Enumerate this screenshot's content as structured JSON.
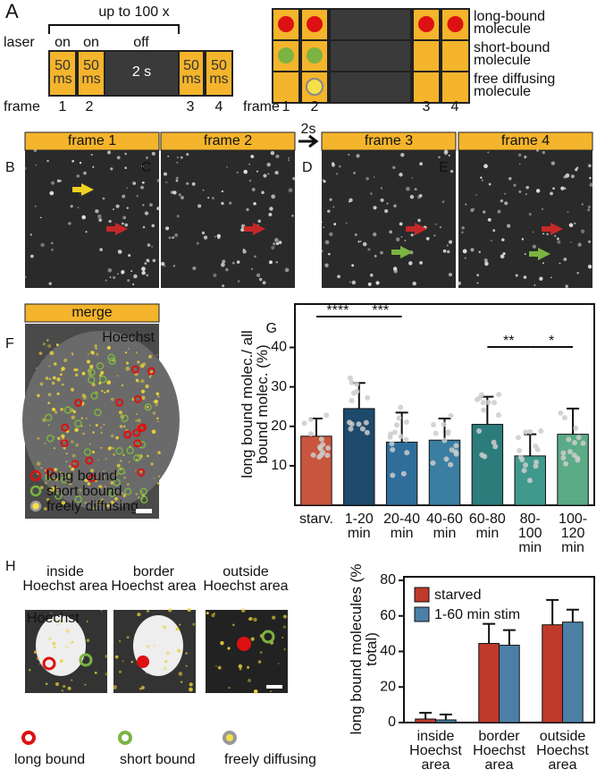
{
  "panel_a": {
    "label": "A",
    "repeat": "up to 100 x",
    "laser": "laser",
    "laser_states": [
      "on",
      "on",
      "off"
    ],
    "boxes": [
      "50 ms",
      "50 ms",
      "2 s",
      "50 ms",
      "50 ms"
    ],
    "frame": "frame",
    "frames": [
      "1",
      "2",
      "3",
      "4"
    ],
    "frame_right": "frame",
    "frames_right": [
      "1",
      "2",
      "3",
      "4"
    ],
    "molecules": [
      "long-bound molecule",
      "short-bound molecule",
      "free diffusing molecule"
    ]
  },
  "panel_frames": {
    "letters": [
      "B",
      "C",
      "D",
      "E"
    ],
    "headers": [
      "frame 1",
      "frame 2",
      "frame 3",
      "frame 4"
    ],
    "interval": "2s"
  },
  "panel_f": {
    "label": "F",
    "header": "merge",
    "stain": "Hoechst",
    "legend": [
      "long bound",
      "short bound",
      "freely diffusing"
    ]
  },
  "panel_h": {
    "label": "H",
    "regions": [
      "inside Hoechst area",
      "border Hoechst area",
      "outside Hoechst area"
    ],
    "stain": "Hoechst",
    "legend": [
      "long bound",
      "short bound",
      "freely diffusing"
    ]
  },
  "chart_data": [
    {
      "type": "bar",
      "panel": "G",
      "y_label": "long bound molec./ all bound molec. (%)",
      "categories": [
        "starv.",
        "1-20 min",
        "20-40 min",
        "40-60 min",
        "60-80 min",
        "80-100 min",
        "100-120 min"
      ],
      "values": [
        17.5,
        24.5,
        16,
        16.5,
        20.5,
        12.5,
        18
      ],
      "errors": [
        4.5,
        6.5,
        7.5,
        5.5,
        7,
        5.5,
        6.5
      ],
      "colors": [
        "#c8553d",
        "#1d4a6b",
        "#2f6e9a",
        "#3b7ea2",
        "#2c7c7c",
        "#3f998c",
        "#5aab86"
      ],
      "ylim": [
        0,
        51
      ],
      "yticks": [
        10,
        20,
        30,
        40
      ],
      "significance": [
        "****",
        "***",
        "**",
        "*"
      ]
    },
    {
      "type": "bar",
      "y_label": "long bound molecules (% total)",
      "categories": [
        "inside Hoechst area",
        "border Hoechst area",
        "outside Hoechst area"
      ],
      "series": [
        {
          "name": "starved",
          "color": "#c0392b",
          "values": [
            2,
            44.5,
            55
          ],
          "errors": [
            3.5,
            11,
            14
          ]
        },
        {
          "name": "1-60 min stim",
          "color": "#4b7fa6",
          "values": [
            1.5,
            43.5,
            56.5
          ],
          "errors": [
            3,
            8.5,
            7
          ]
        }
      ],
      "ylim": [
        0,
        82
      ],
      "yticks": [
        0,
        20,
        40,
        60,
        80
      ],
      "legend": "upper-left"
    }
  ]
}
